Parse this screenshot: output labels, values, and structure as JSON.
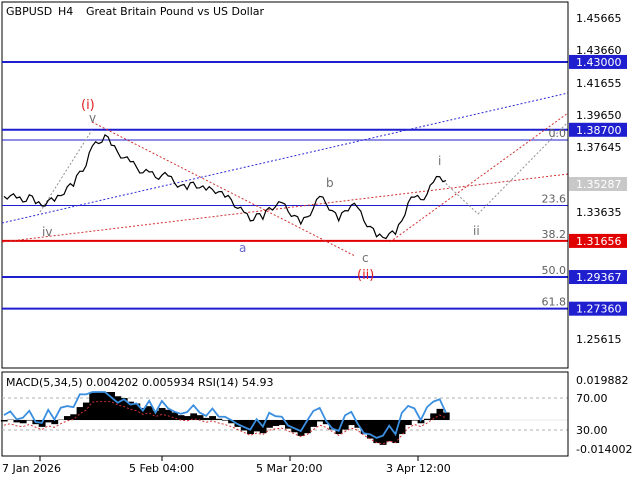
{
  "header": {
    "symbol": "GBPUSD",
    "timeframe": "H4",
    "description": "Great Britain Pound vs US Dollar"
  },
  "price_axis": {
    "ticks": [
      "1.45665",
      "1.43660",
      "1.41655",
      "1.39650",
      "1.37645",
      "1.35287",
      "1.33635",
      "1.29367",
      "1.27360",
      "1.25615"
    ],
    "current_price": "1.35287",
    "range": [
      1.236,
      1.468
    ]
  },
  "levels": [
    {
      "price": 1.43,
      "label": "1.43000",
      "color": "#1f1fd0",
      "fib": ""
    },
    {
      "price": 1.387,
      "label": "1.38700",
      "color": "#1f1fd0",
      "fib": ""
    },
    {
      "price": 1.3805,
      "label": "",
      "color": "#1f1fd0",
      "fib": "0.0"
    },
    {
      "price": 1.339,
      "label": "",
      "color": "#1f1fd0",
      "fib": "23.6"
    },
    {
      "price": 1.31656,
      "label": "1.31656",
      "color": "#e00000",
      "fib": "38.2"
    },
    {
      "price": 1.29367,
      "label": "1.29367",
      "color": "#1f1fd0",
      "fib": "50.0"
    },
    {
      "price": 1.2736,
      "label": "1.27360",
      "color": "#1f1fd0",
      "fib": "61.8"
    }
  ],
  "wave_labels": [
    {
      "text": "(i)",
      "color": "#e02020"
    },
    {
      "text": "v",
      "color": "#707070"
    },
    {
      "text": "iv",
      "color": "#707070"
    },
    {
      "text": "a",
      "color": "#6a6ad0"
    },
    {
      "text": "b",
      "color": "#707070"
    },
    {
      "text": "c",
      "color": "#707070"
    },
    {
      "text": "(ii)",
      "color": "#e02020"
    },
    {
      "text": "i",
      "color": "#707070"
    },
    {
      "text": "ii",
      "color": "#707070"
    }
  ],
  "indicator": {
    "label": "MACD(5,34,5) 0.004202 0.005934 RSI(14) 54.93",
    "ticks": [
      "0.019882",
      "70.00",
      "30.00",
      "-0.014002"
    ]
  },
  "time_axis": {
    "ticks": [
      "7 Jan 2026",
      "5 Feb 04:00",
      "5 Mar 20:00",
      "3 Apr 12:00"
    ]
  },
  "colors": {
    "price_line": "#000000",
    "level_blue": "#1f1fd0",
    "level_red": "#e00000",
    "trend_blue": "#2a2ad8",
    "trend_red": "#d03030",
    "rsi": "#3b8fe0",
    "current_price_bg": "#c8c8c8"
  },
  "chart_data": {
    "type": "line",
    "series": [
      {
        "values": [
          1.344,
          1.346,
          1.343,
          1.342,
          1.345,
          1.341,
          1.338,
          1.343,
          1.341,
          1.346,
          1.35,
          1.352,
          1.36,
          1.365,
          1.376,
          1.379,
          1.383,
          1.378,
          1.372,
          1.37,
          1.366,
          1.364,
          1.359,
          1.361,
          1.356,
          1.359,
          1.357,
          1.354,
          1.351,
          1.35,
          1.353,
          1.351,
          1.348,
          1.35,
          1.347,
          1.345,
          1.342,
          1.338,
          1.334,
          1.33,
          1.333,
          1.331,
          1.337,
          1.339,
          1.34,
          1.336,
          1.332,
          1.328,
          1.331,
          1.338,
          1.344,
          1.341,
          1.335,
          1.33,
          1.335,
          1.34,
          1.337,
          1.33,
          1.325,
          1.32,
          1.318,
          1.322,
          1.32,
          1.33,
          1.34,
          1.345,
          1.342,
          1.347,
          1.353,
          1.358,
          1.354
        ]
      }
    ],
    "ylim": [
      1.236,
      1.468
    ]
  }
}
